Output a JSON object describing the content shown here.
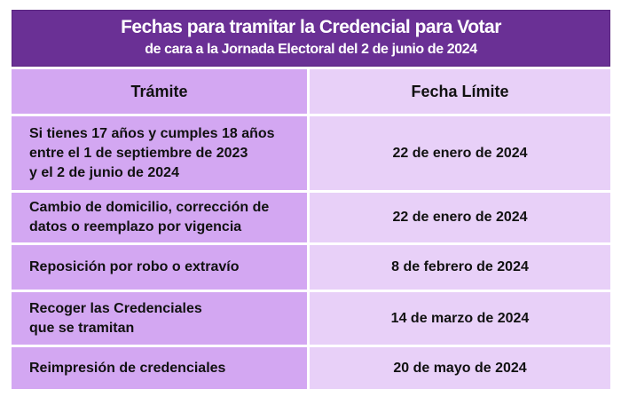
{
  "title": {
    "line1": "Fechas para tramitar la Credencial para Votar",
    "line2": "de cara a la Jornada Electoral del 2 de junio de 2024"
  },
  "headers": {
    "tramite": "Trámite",
    "fecha": "Fecha Límite"
  },
  "rows": [
    {
      "tramite": "Si tienes 17 años y cumples 18 años\nentre el 1 de septiembre de 2023\ny el 2 de junio de 2024",
      "fecha": "22 de enero de 2024"
    },
    {
      "tramite": "Cambio de domicilio, corrección de\ndatos o reemplazo por vigencia",
      "fecha": "22 de enero de 2024"
    },
    {
      "tramite": "Reposición por robo o extravío",
      "fecha": "8 de febrero de 2024"
    },
    {
      "tramite": "Recoger las Credenciales\nque se tramitan",
      "fecha": "14 de marzo de 2024"
    },
    {
      "tramite": "Reimpresión de credenciales",
      "fecha": "20 de mayo de 2024"
    }
  ],
  "colors": {
    "header": "#6a3095",
    "col1": "#d3a7f2",
    "col2": "#e8d0f8"
  }
}
